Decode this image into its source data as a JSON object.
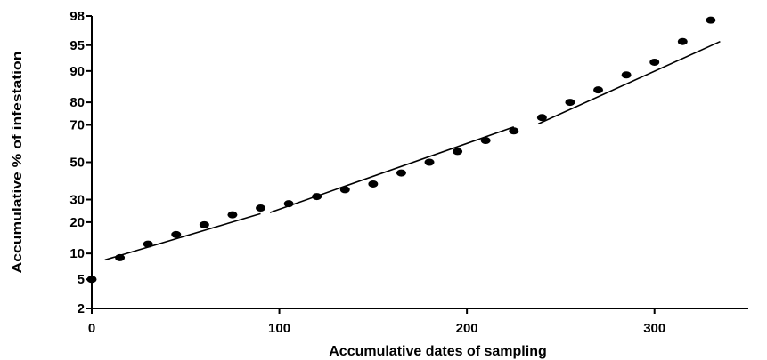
{
  "chart_data": {
    "type": "scatter",
    "xlabel": "Accumulative dates of sampling",
    "ylabel": "Accumulative % of infestation",
    "y_scale": "probability",
    "xlim": [
      0,
      350
    ],
    "ylim": [
      2,
      98
    ],
    "x_ticks": [
      0,
      100,
      200,
      300
    ],
    "x_tick_labels": [
      "0",
      "100",
      "200",
      "300"
    ],
    "y_ticks": [
      2,
      5,
      10,
      20,
      30,
      50,
      70,
      80,
      90,
      95,
      98
    ],
    "y_tick_labels": [
      "2",
      "5",
      "10",
      "20",
      "30",
      "50",
      "70",
      "80",
      "90",
      "95",
      "98"
    ],
    "grid": false,
    "series": [
      {
        "points": [
          [
            0,
            5
          ],
          [
            15,
            9
          ],
          [
            30,
            12.5
          ],
          [
            45,
            15.5
          ],
          [
            60,
            19
          ],
          [
            75,
            23
          ],
          [
            90,
            26
          ],
          [
            105,
            28
          ],
          [
            120,
            31.5
          ],
          [
            135,
            35
          ],
          [
            150,
            38
          ],
          [
            165,
            44
          ],
          [
            180,
            50
          ],
          [
            195,
            56
          ],
          [
            210,
            62
          ],
          [
            225,
            67
          ],
          [
            240,
            73.5
          ],
          [
            255,
            80
          ],
          [
            270,
            84.5
          ],
          [
            285,
            89
          ],
          [
            300,
            92
          ],
          [
            315,
            95.5
          ],
          [
            330,
            97.7
          ]
        ]
      }
    ],
    "fit_lines": [
      {
        "x": [
          7,
          90
        ],
        "y": [
          8.5,
          23.5
        ]
      },
      {
        "x": [
          95,
          225
        ],
        "y": [
          24,
          69
        ]
      },
      {
        "x": [
          238,
          335
        ],
        "y": [
          70.5,
          95.5
        ]
      }
    ]
  }
}
